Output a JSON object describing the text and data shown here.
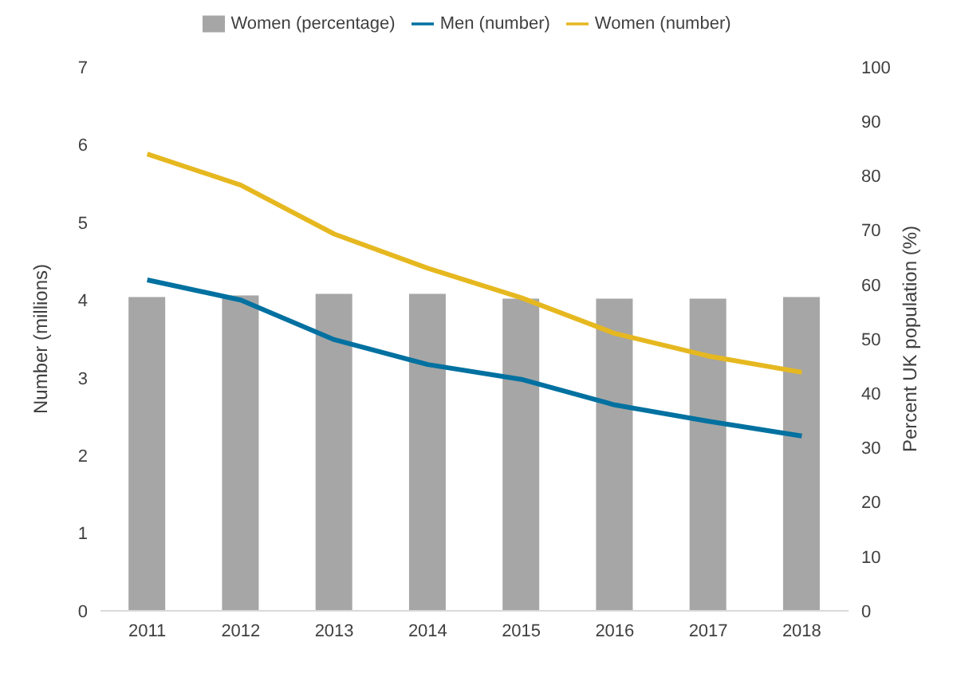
{
  "chart_data": {
    "type": "line",
    "categories": [
      "2011",
      "2012",
      "2013",
      "2014",
      "2015",
      "2016",
      "2017",
      "2018"
    ],
    "ylabel": "Number  (millions)",
    "y2label": "Percent UK population (%)",
    "ylim": [
      0,
      7
    ],
    "yticks": [
      0,
      1,
      2,
      3,
      4,
      5,
      6,
      7
    ],
    "y2lim": [
      0,
      100
    ],
    "y2ticks": [
      0,
      10,
      20,
      30,
      40,
      50,
      60,
      70,
      80,
      90,
      100
    ],
    "legend": "top",
    "grid": false,
    "marker": "none",
    "line_style": "solid",
    "series": [
      {
        "name": "Women (percentage)",
        "type": "bar",
        "axis": "y2",
        "color": "#a6a6a6",
        "values": [
          57.7,
          58,
          58.3,
          58.3,
          57.4,
          57.4,
          57.4,
          57.7
        ]
      },
      {
        "name": "Men (number)",
        "color": "#0071a0",
        "values": [
          4.26,
          4.0,
          3.49,
          3.17,
          2.98,
          2.65,
          2.44,
          2.25
        ]
      },
      {
        "name": "Women (number)",
        "color": "#e6b820",
        "values": [
          5.88,
          5.48,
          4.85,
          4.41,
          4.03,
          3.57,
          3.28,
          3.07
        ]
      }
    ]
  }
}
